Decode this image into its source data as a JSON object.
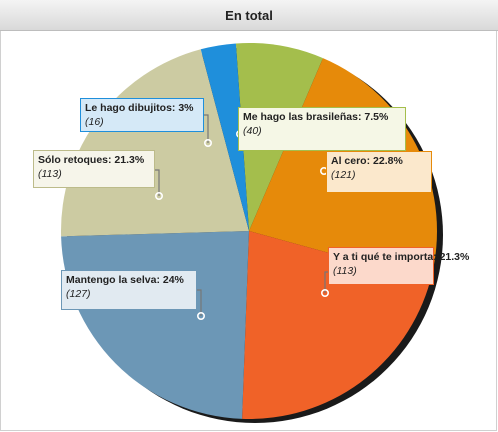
{
  "header": {
    "title": "En total"
  },
  "chart_data": {
    "type": "pie",
    "title": "En total",
    "slices": [
      {
        "label": "Me hago las brasileñas",
        "percent": "7.5%",
        "count": "(40)",
        "value": 40,
        "color": "#a4be4c",
        "fill": "#f5f7e6",
        "border": "#a4be4c"
      },
      {
        "label": "Al cero",
        "percent": "22.8%",
        "count": "(121)",
        "value": 121,
        "color": "#e68a0a",
        "fill": "#fbe8cc",
        "border": "#e68a0a"
      },
      {
        "label": "Y a ti qué te importa",
        "percent": "21.3%",
        "count": "(113)",
        "value": 113,
        "color": "#f06228",
        "fill": "#fcd9cb",
        "border": "#f06228"
      },
      {
        "label": "Mantengo la selva",
        "percent": "24%",
        "count": "(127)",
        "value": 127,
        "color": "#6c97b6",
        "fill": "#e1eaf1",
        "border": "#6c97b6"
      },
      {
        "label": "Sólo retoques",
        "percent": "21.3%",
        "count": "(113)",
        "value": 113,
        "color": "#cccba2",
        "fill": "#f6f5ea",
        "border": "#bcbb8a"
      },
      {
        "label": "Le hago dibujitos",
        "percent": "3%",
        "count": "(16)",
        "value": 16,
        "color": "#1f8fdb",
        "fill": "#d5e9f7",
        "border": "#1f8fdb"
      }
    ]
  }
}
